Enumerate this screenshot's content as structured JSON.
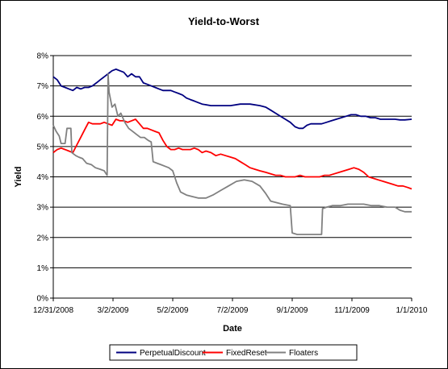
{
  "chart_data": {
    "type": "line",
    "title": "Yield-to-Worst",
    "xlabel": "Date",
    "ylabel": "Yield",
    "ylim": [
      0,
      8
    ],
    "xlim": [
      "2008-12-31",
      "2010-01-01"
    ],
    "y_ticks": [
      "0%",
      "1%",
      "2%",
      "3%",
      "4%",
      "5%",
      "6%",
      "7%",
      "8%"
    ],
    "x_ticks": [
      {
        "date": "2008-12-31",
        "label": "12/31/2008"
      },
      {
        "date": "2009-03-02",
        "label": "3/2/2009"
      },
      {
        "date": "2009-05-02",
        "label": "5/2/2009"
      },
      {
        "date": "2009-07-02",
        "label": "7/2/2009"
      },
      {
        "date": "2009-09-01",
        "label": "9/1/2009"
      },
      {
        "date": "2009-11-01",
        "label": "11/1/2009"
      },
      {
        "date": "2010-01-01",
        "label": "1/1/2010"
      }
    ],
    "grid": "horizontal",
    "legend_position": "bottom",
    "plot_background": "#ffffff",
    "series": [
      {
        "name": "PerpetualDiscount",
        "color": "#000080",
        "points": [
          [
            "2008-12-31",
            7.3
          ],
          [
            "2009-01-04",
            7.2
          ],
          [
            "2009-01-08",
            7.0
          ],
          [
            "2009-01-12",
            6.95
          ],
          [
            "2009-01-16",
            6.9
          ],
          [
            "2009-01-20",
            6.85
          ],
          [
            "2009-01-24",
            6.95
          ],
          [
            "2009-01-28",
            6.9
          ],
          [
            "2009-02-01",
            6.95
          ],
          [
            "2009-02-05",
            6.95
          ],
          [
            "2009-02-09",
            7.0
          ],
          [
            "2009-02-13",
            7.1
          ],
          [
            "2009-02-17",
            7.2
          ],
          [
            "2009-02-21",
            7.3
          ],
          [
            "2009-02-25",
            7.4
          ],
          [
            "2009-03-01",
            7.5
          ],
          [
            "2009-03-05",
            7.55
          ],
          [
            "2009-03-09",
            7.5
          ],
          [
            "2009-03-13",
            7.45
          ],
          [
            "2009-03-17",
            7.3
          ],
          [
            "2009-03-21",
            7.4
          ],
          [
            "2009-03-25",
            7.3
          ],
          [
            "2009-03-29",
            7.3
          ],
          [
            "2009-04-02",
            7.1
          ],
          [
            "2009-04-06",
            7.05
          ],
          [
            "2009-04-10",
            7.0
          ],
          [
            "2009-04-14",
            6.95
          ],
          [
            "2009-04-18",
            6.9
          ],
          [
            "2009-04-22",
            6.85
          ],
          [
            "2009-04-26",
            6.85
          ],
          [
            "2009-04-30",
            6.85
          ],
          [
            "2009-05-04",
            6.8
          ],
          [
            "2009-05-08",
            6.75
          ],
          [
            "2009-05-12",
            6.7
          ],
          [
            "2009-05-16",
            6.6
          ],
          [
            "2009-05-20",
            6.55
          ],
          [
            "2009-05-24",
            6.5
          ],
          [
            "2009-05-28",
            6.45
          ],
          [
            "2009-06-01",
            6.4
          ],
          [
            "2009-06-10",
            6.35
          ],
          [
            "2009-06-20",
            6.35
          ],
          [
            "2009-06-30",
            6.35
          ],
          [
            "2009-07-10",
            6.4
          ],
          [
            "2009-07-20",
            6.4
          ],
          [
            "2009-07-30",
            6.35
          ],
          [
            "2009-08-05",
            6.3
          ],
          [
            "2009-08-10",
            6.2
          ],
          [
            "2009-08-15",
            6.1
          ],
          [
            "2009-08-20",
            6.0
          ],
          [
            "2009-08-25",
            5.9
          ],
          [
            "2009-08-30",
            5.8
          ],
          [
            "2009-09-04",
            5.65
          ],
          [
            "2009-09-08",
            5.6
          ],
          [
            "2009-09-12",
            5.6
          ],
          [
            "2009-09-16",
            5.7
          ],
          [
            "2009-09-20",
            5.75
          ],
          [
            "2009-09-25",
            5.75
          ],
          [
            "2009-10-01",
            5.75
          ],
          [
            "2009-10-06",
            5.8
          ],
          [
            "2009-10-11",
            5.85
          ],
          [
            "2009-10-16",
            5.9
          ],
          [
            "2009-10-21",
            5.95
          ],
          [
            "2009-10-26",
            6.0
          ],
          [
            "2009-10-31",
            6.05
          ],
          [
            "2009-11-05",
            6.05
          ],
          [
            "2009-11-10",
            6.0
          ],
          [
            "2009-11-15",
            6.0
          ],
          [
            "2009-11-20",
            5.95
          ],
          [
            "2009-11-25",
            5.95
          ],
          [
            "2009-11-30",
            5.9
          ],
          [
            "2009-12-05",
            5.9
          ],
          [
            "2009-12-10",
            5.9
          ],
          [
            "2009-12-15",
            5.9
          ],
          [
            "2009-12-20",
            5.88
          ],
          [
            "2009-12-25",
            5.88
          ],
          [
            "2010-01-01",
            5.9
          ]
        ]
      },
      {
        "name": "FixedReset",
        "color": "#ff0000",
        "points": [
          [
            "2008-12-31",
            4.8
          ],
          [
            "2009-01-04",
            4.9
          ],
          [
            "2009-01-08",
            4.95
          ],
          [
            "2009-01-12",
            4.9
          ],
          [
            "2009-01-16",
            4.85
          ],
          [
            "2009-01-20",
            4.8
          ],
          [
            "2009-01-24",
            5.05
          ],
          [
            "2009-01-28",
            5.3
          ],
          [
            "2009-02-01",
            5.55
          ],
          [
            "2009-02-05",
            5.8
          ],
          [
            "2009-02-09",
            5.75
          ],
          [
            "2009-02-13",
            5.75
          ],
          [
            "2009-02-17",
            5.75
          ],
          [
            "2009-02-21",
            5.8
          ],
          [
            "2009-02-25",
            5.75
          ],
          [
            "2009-03-01",
            5.7
          ],
          [
            "2009-03-05",
            5.9
          ],
          [
            "2009-03-09",
            5.85
          ],
          [
            "2009-03-13",
            5.85
          ],
          [
            "2009-03-17",
            5.8
          ],
          [
            "2009-03-21",
            5.85
          ],
          [
            "2009-03-25",
            5.9
          ],
          [
            "2009-03-29",
            5.75
          ],
          [
            "2009-04-02",
            5.6
          ],
          [
            "2009-04-06",
            5.6
          ],
          [
            "2009-04-10",
            5.55
          ],
          [
            "2009-04-14",
            5.5
          ],
          [
            "2009-04-18",
            5.45
          ],
          [
            "2009-04-22",
            5.2
          ],
          [
            "2009-04-26",
            5.0
          ],
          [
            "2009-04-30",
            4.9
          ],
          [
            "2009-05-04",
            4.9
          ],
          [
            "2009-05-08",
            4.95
          ],
          [
            "2009-05-12",
            4.9
          ],
          [
            "2009-05-16",
            4.9
          ],
          [
            "2009-05-20",
            4.9
          ],
          [
            "2009-05-24",
            4.95
          ],
          [
            "2009-05-28",
            4.9
          ],
          [
            "2009-06-01",
            4.8
          ],
          [
            "2009-06-05",
            4.85
          ],
          [
            "2009-06-10",
            4.8
          ],
          [
            "2009-06-15",
            4.7
          ],
          [
            "2009-06-20",
            4.75
          ],
          [
            "2009-06-25",
            4.7
          ],
          [
            "2009-06-30",
            4.65
          ],
          [
            "2009-07-05",
            4.6
          ],
          [
            "2009-07-10",
            4.5
          ],
          [
            "2009-07-15",
            4.4
          ],
          [
            "2009-07-20",
            4.3
          ],
          [
            "2009-07-25",
            4.25
          ],
          [
            "2009-07-30",
            4.2
          ],
          [
            "2009-08-05",
            4.15
          ],
          [
            "2009-08-10",
            4.1
          ],
          [
            "2009-08-15",
            4.05
          ],
          [
            "2009-08-20",
            4.05
          ],
          [
            "2009-08-25",
            4.0
          ],
          [
            "2009-08-30",
            4.0
          ],
          [
            "2009-09-04",
            4.0
          ],
          [
            "2009-09-09",
            4.05
          ],
          [
            "2009-09-14",
            4.0
          ],
          [
            "2009-09-19",
            4.0
          ],
          [
            "2009-09-24",
            4.0
          ],
          [
            "2009-09-29",
            4.0
          ],
          [
            "2009-10-04",
            4.05
          ],
          [
            "2009-10-09",
            4.05
          ],
          [
            "2009-10-14",
            4.1
          ],
          [
            "2009-10-19",
            4.15
          ],
          [
            "2009-10-24",
            4.2
          ],
          [
            "2009-10-29",
            4.25
          ],
          [
            "2009-11-03",
            4.3
          ],
          [
            "2009-11-08",
            4.25
          ],
          [
            "2009-11-13",
            4.15
          ],
          [
            "2009-11-18",
            4.0
          ],
          [
            "2009-11-23",
            3.95
          ],
          [
            "2009-11-28",
            3.9
          ],
          [
            "2009-12-03",
            3.85
          ],
          [
            "2009-12-08",
            3.8
          ],
          [
            "2009-12-13",
            3.75
          ],
          [
            "2009-12-18",
            3.7
          ],
          [
            "2009-12-23",
            3.7
          ],
          [
            "2009-12-28",
            3.65
          ],
          [
            "2010-01-01",
            3.6
          ]
        ]
      },
      {
        "name": "Floaters",
        "color": "#808080",
        "points": [
          [
            "2008-12-31",
            5.7
          ],
          [
            "2009-01-03",
            5.5
          ],
          [
            "2009-01-06",
            5.35
          ],
          [
            "2009-01-08",
            5.1
          ],
          [
            "2009-01-12",
            5.1
          ],
          [
            "2009-01-14",
            5.6
          ],
          [
            "2009-01-18",
            5.6
          ],
          [
            "2009-01-19",
            4.8
          ],
          [
            "2009-01-23",
            4.7
          ],
          [
            "2009-01-26",
            4.65
          ],
          [
            "2009-01-30",
            4.6
          ],
          [
            "2009-02-03",
            4.45
          ],
          [
            "2009-02-08",
            4.4
          ],
          [
            "2009-02-12",
            4.3
          ],
          [
            "2009-02-17",
            4.25
          ],
          [
            "2009-02-21",
            4.2
          ],
          [
            "2009-02-24",
            4.05
          ],
          [
            "2009-02-25",
            7.4
          ],
          [
            "2009-02-26",
            6.8
          ],
          [
            "2009-03-01",
            6.3
          ],
          [
            "2009-03-04",
            6.4
          ],
          [
            "2009-03-07",
            6.0
          ],
          [
            "2009-03-10",
            6.1
          ],
          [
            "2009-03-14",
            5.8
          ],
          [
            "2009-03-18",
            5.6
          ],
          [
            "2009-03-22",
            5.5
          ],
          [
            "2009-03-26",
            5.4
          ],
          [
            "2009-03-30",
            5.3
          ],
          [
            "2009-04-03",
            5.3
          ],
          [
            "2009-04-07",
            5.2
          ],
          [
            "2009-04-10",
            5.15
          ],
          [
            "2009-04-12",
            4.5
          ],
          [
            "2009-04-16",
            4.45
          ],
          [
            "2009-04-20",
            4.4
          ],
          [
            "2009-04-24",
            4.35
          ],
          [
            "2009-04-28",
            4.3
          ],
          [
            "2009-05-02",
            4.2
          ],
          [
            "2009-05-06",
            3.8
          ],
          [
            "2009-05-10",
            3.5
          ],
          [
            "2009-05-16",
            3.4
          ],
          [
            "2009-05-22",
            3.35
          ],
          [
            "2009-05-28",
            3.3
          ],
          [
            "2009-06-05",
            3.3
          ],
          [
            "2009-06-12",
            3.4
          ],
          [
            "2009-06-20",
            3.55
          ],
          [
            "2009-06-28",
            3.7
          ],
          [
            "2009-07-06",
            3.85
          ],
          [
            "2009-07-14",
            3.9
          ],
          [
            "2009-07-22",
            3.85
          ],
          [
            "2009-07-30",
            3.7
          ],
          [
            "2009-08-05",
            3.45
          ],
          [
            "2009-08-10",
            3.2
          ],
          [
            "2009-08-16",
            3.15
          ],
          [
            "2009-08-22",
            3.1
          ],
          [
            "2009-08-30",
            3.05
          ],
          [
            "2009-09-01",
            2.15
          ],
          [
            "2009-09-06",
            2.1
          ],
          [
            "2009-09-12",
            2.1
          ],
          [
            "2009-09-20",
            2.1
          ],
          [
            "2009-09-28",
            2.1
          ],
          [
            "2009-10-01",
            2.1
          ],
          [
            "2009-10-02",
            2.95
          ],
          [
            "2009-10-06",
            3.0
          ],
          [
            "2009-10-12",
            3.05
          ],
          [
            "2009-10-20",
            3.05
          ],
          [
            "2009-10-28",
            3.1
          ],
          [
            "2009-11-05",
            3.1
          ],
          [
            "2009-11-13",
            3.1
          ],
          [
            "2009-11-21",
            3.05
          ],
          [
            "2009-11-29",
            3.05
          ],
          [
            "2009-12-07",
            3.0
          ],
          [
            "2009-12-15",
            3.0
          ],
          [
            "2009-12-20",
            2.9
          ],
          [
            "2009-12-25",
            2.85
          ],
          [
            "2010-01-01",
            2.85
          ]
        ]
      }
    ]
  }
}
